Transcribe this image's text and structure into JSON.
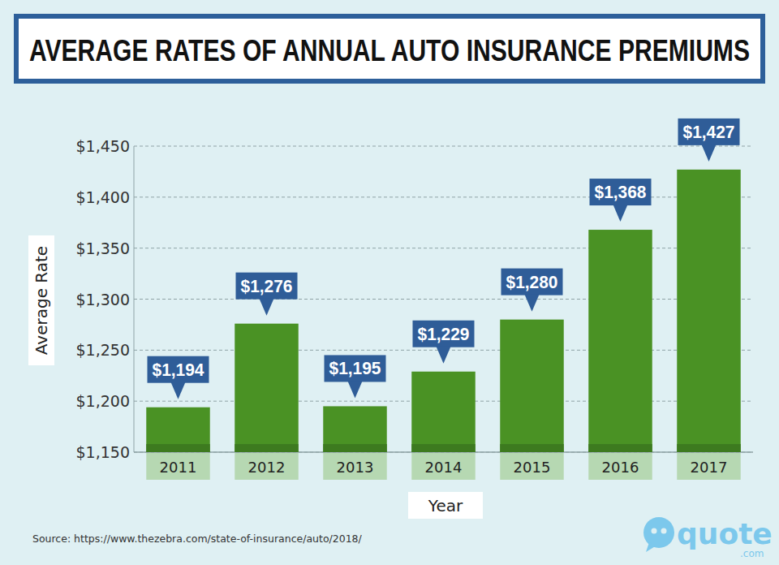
{
  "chart_data": {
    "type": "bar",
    "title": "AVERAGE RATES OF ANNUAL AUTO INSURANCE PREMIUMS",
    "x_label": "Year",
    "y_label": "Average Rate",
    "categories": [
      "2011",
      "2012",
      "2013",
      "2014",
      "2015",
      "2016",
      "2017"
    ],
    "values": [
      1194,
      1276,
      1195,
      1229,
      1280,
      1368,
      1427
    ],
    "value_labels": [
      "$1,194",
      "$1,276",
      "$1,195",
      "$1,229",
      "$1,280",
      "$1,368",
      "$1,427"
    ],
    "color": "#4a9224",
    "ylim": [
      1150,
      1450
    ],
    "yticks": [
      {
        "value": 1150,
        "label": "$1,150"
      },
      {
        "value": 1200,
        "label": "$1,200"
      },
      {
        "value": 1250,
        "label": "$1,250"
      },
      {
        "value": 1300,
        "label": "$1,300"
      },
      {
        "value": 1350,
        "label": "$1,350"
      },
      {
        "value": 1400,
        "label": "$1,400"
      },
      {
        "value": 1450,
        "label": "$1,450"
      }
    ],
    "grid": true,
    "data_labels": true,
    "source": "Source: https://www.thezebra.com/state-of-insurance/auto/2018/",
    "logo": "quote",
    "logo_suffix": ".com"
  }
}
